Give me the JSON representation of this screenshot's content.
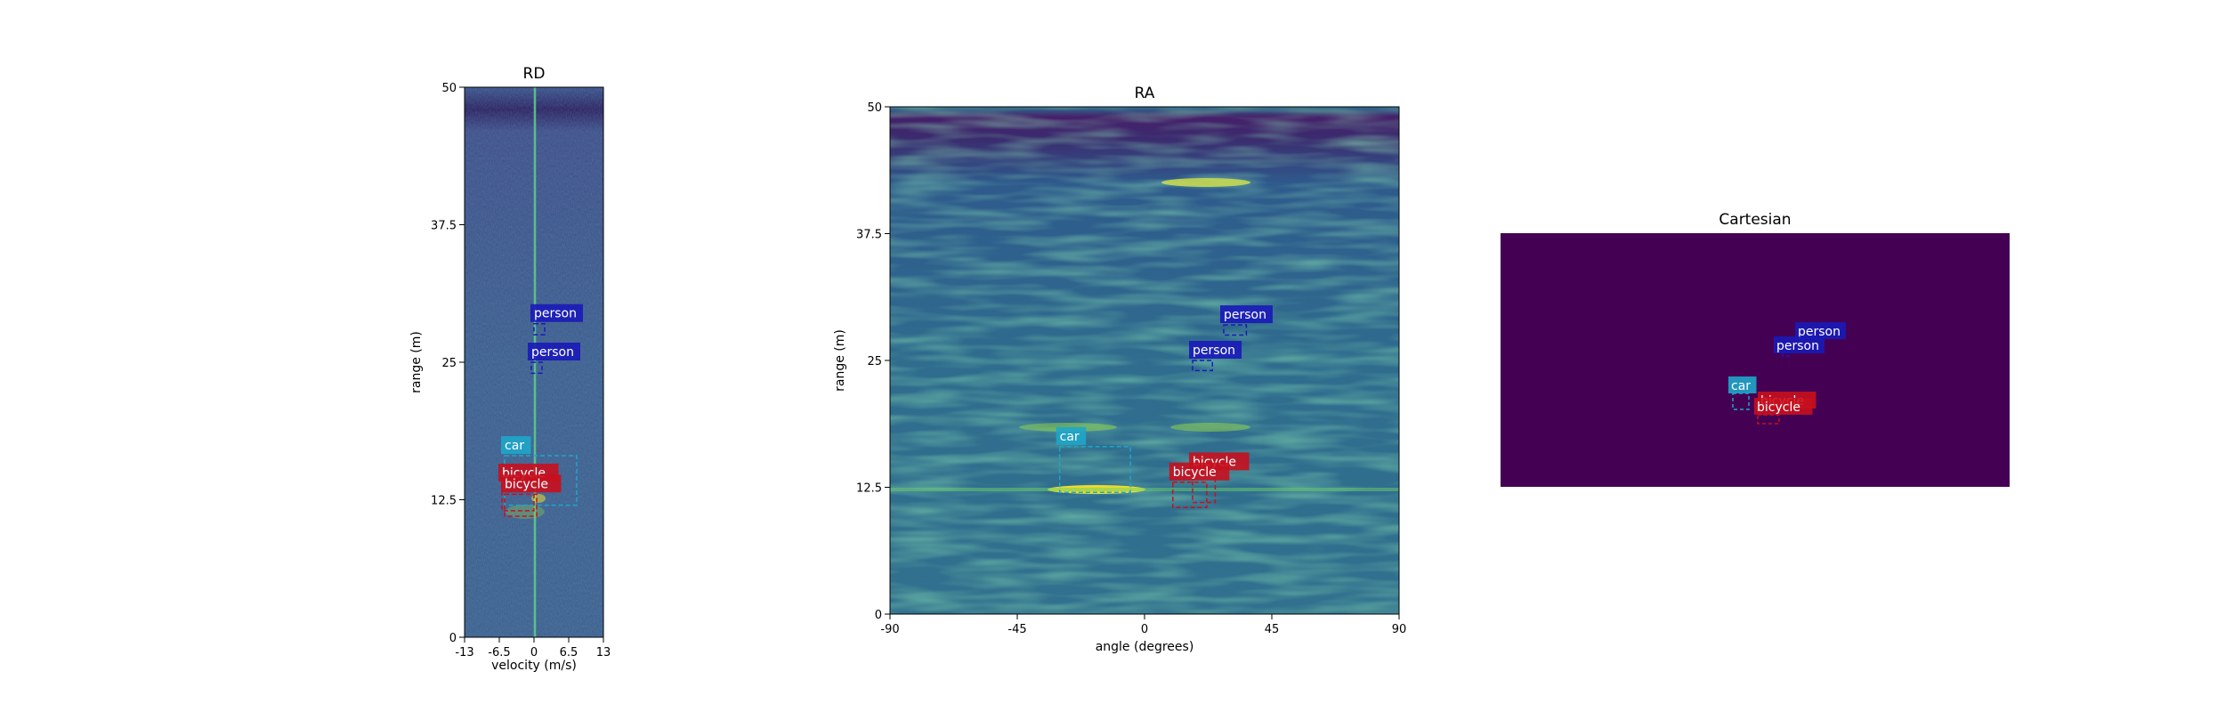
{
  "chart_data": [
    {
      "type": "heatmap",
      "title": "RD",
      "xlabel": "velocity (m/s)",
      "ylabel": "range (m)",
      "xlim": [
        -13,
        13
      ],
      "ylim": [
        0,
        50
      ],
      "x_ticks": [
        "-13",
        "-6.5",
        "0",
        "6.5",
        "13"
      ],
      "y_ticks": [
        "0",
        "12.5",
        "25",
        "37.5",
        "50"
      ],
      "colormap": "viridis",
      "boxes": [
        {
          "label": "person",
          "color": "#1a1ab8",
          "x": [
            0,
            2
          ],
          "y": [
            27.5,
            28.5
          ]
        },
        {
          "label": "person",
          "color": "#1a1ab8",
          "x": [
            -0.5,
            1.5
          ],
          "y": [
            24,
            25
          ]
        },
        {
          "label": "car",
          "color": "#1fa6c9",
          "x": [
            -5.5,
            8
          ],
          "y": [
            12,
            16.5
          ]
        },
        {
          "label": "bicycle",
          "color": "#c8101e",
          "x": [
            -6,
            0
          ],
          "y": [
            11.5,
            14
          ]
        },
        {
          "label": "bicycle",
          "color": "#c8101e",
          "x": [
            -5.5,
            0.5
          ],
          "y": [
            11,
            13
          ]
        }
      ]
    },
    {
      "type": "heatmap",
      "title": "RA",
      "xlabel": "angle (degrees)",
      "ylabel": "range (m)",
      "xlim": [
        -90,
        90
      ],
      "ylim": [
        0,
        50
      ],
      "x_ticks": [
        "-90",
        "-45",
        "0",
        "45",
        "90"
      ],
      "y_ticks": [
        "0",
        "12.5",
        "25",
        "37.5",
        "50"
      ],
      "colormap": "viridis",
      "boxes": [
        {
          "label": "person",
          "color": "#1a1ab8",
          "x": [
            28,
            36
          ],
          "y": [
            27.5,
            28.5
          ]
        },
        {
          "label": "person",
          "color": "#1a1ab8",
          "x": [
            17,
            24
          ],
          "y": [
            24,
            25
          ]
        },
        {
          "label": "car",
          "color": "#1fa6c9",
          "x": [
            -30,
            -5
          ],
          "y": [
            12,
            16.5
          ]
        },
        {
          "label": "bicycle",
          "color": "#c8101e",
          "x": [
            17,
            25
          ],
          "y": [
            11,
            14
          ]
        },
        {
          "label": "bicycle",
          "color": "#c8101e",
          "x": [
            10,
            22
          ],
          "y": [
            10.5,
            13
          ]
        }
      ]
    },
    {
      "type": "heatmap",
      "title": "Cartesian",
      "background": "#440154",
      "boxes": [
        {
          "label": "person",
          "color": "#1a1ab8"
        },
        {
          "label": "person",
          "color": "#1a1ab8"
        },
        {
          "label": "car",
          "color": "#1fa6c9"
        },
        {
          "label": "bicycle",
          "color": "#c8101e"
        },
        {
          "label": "bicycle",
          "color": "#c8101e"
        }
      ]
    }
  ]
}
